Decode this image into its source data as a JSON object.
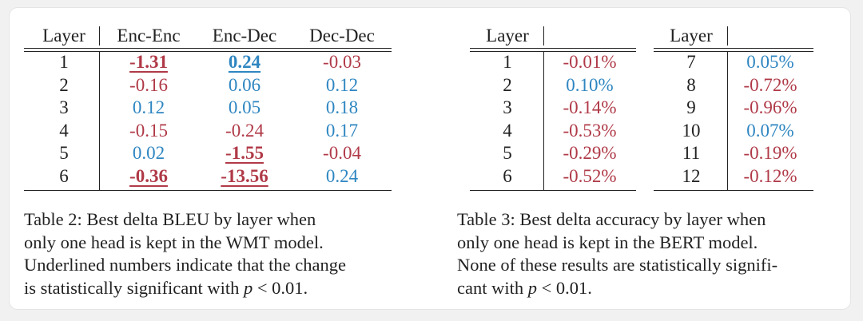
{
  "table2": {
    "headers": [
      "Layer",
      "Enc-Enc",
      "Enc-Dec",
      "Dec-Dec"
    ],
    "rows": [
      {
        "layer": "1",
        "cells": [
          {
            "v": "-1.31",
            "c": "red",
            "sig": true
          },
          {
            "v": "0.24",
            "c": "blue",
            "sig": true
          },
          {
            "v": "-0.03",
            "c": "red",
            "sig": false
          }
        ]
      },
      {
        "layer": "2",
        "cells": [
          {
            "v": "-0.16",
            "c": "red",
            "sig": false
          },
          {
            "v": "0.06",
            "c": "blue",
            "sig": false
          },
          {
            "v": "0.12",
            "c": "blue",
            "sig": false
          }
        ]
      },
      {
        "layer": "3",
        "cells": [
          {
            "v": "0.12",
            "c": "blue",
            "sig": false
          },
          {
            "v": "0.05",
            "c": "blue",
            "sig": false
          },
          {
            "v": "0.18",
            "c": "blue",
            "sig": false
          }
        ]
      },
      {
        "layer": "4",
        "cells": [
          {
            "v": "-0.15",
            "c": "red",
            "sig": false
          },
          {
            "v": "-0.24",
            "c": "red",
            "sig": false
          },
          {
            "v": "0.17",
            "c": "blue",
            "sig": false
          }
        ]
      },
      {
        "layer": "5",
        "cells": [
          {
            "v": "0.02",
            "c": "blue",
            "sig": false
          },
          {
            "v": "-1.55",
            "c": "red",
            "sig": true
          },
          {
            "v": "-0.04",
            "c": "red",
            "sig": false
          }
        ]
      },
      {
        "layer": "6",
        "cells": [
          {
            "v": "-0.36",
            "c": "red",
            "sig": true
          },
          {
            "v": "-13.56",
            "c": "red",
            "sig": true
          },
          {
            "v": "0.24",
            "c": "blue",
            "sig": false
          }
        ]
      }
    ],
    "caption_lines": [
      "Table 2:  Best delta BLEU by layer when",
      "only one head is kept in the WMT model.",
      "Underlined numbers indicate that the change"
    ],
    "caption_last_pre": "is statistically significant with ",
    "caption_p": "p",
    "caption_rel": " < 0.01."
  },
  "table3": {
    "header": "Layer",
    "left_rows": [
      {
        "layer": "1",
        "v": "-0.01%",
        "c": "red"
      },
      {
        "layer": "2",
        "v": "0.10%",
        "c": "blue"
      },
      {
        "layer": "3",
        "v": "-0.14%",
        "c": "red"
      },
      {
        "layer": "4",
        "v": "-0.53%",
        "c": "red"
      },
      {
        "layer": "5",
        "v": "-0.29%",
        "c": "red"
      },
      {
        "layer": "6",
        "v": "-0.52%",
        "c": "red"
      }
    ],
    "right_rows": [
      {
        "layer": "7",
        "v": "0.05%",
        "c": "blue"
      },
      {
        "layer": "8",
        "v": "-0.72%",
        "c": "red"
      },
      {
        "layer": "9",
        "v": "-0.96%",
        "c": "red"
      },
      {
        "layer": "10",
        "v": "0.07%",
        "c": "blue"
      },
      {
        "layer": "11",
        "v": "-0.19%",
        "c": "red"
      },
      {
        "layer": "12",
        "v": "-0.12%",
        "c": "red"
      }
    ],
    "caption_lines": [
      "Table 3:  Best delta accuracy by layer when",
      "only one head is kept in the BERT model.",
      "None of these results are statistically signifi-"
    ],
    "caption_last_pre": "cant with ",
    "caption_p": "p",
    "caption_rel": " < 0.01."
  },
  "colors": {
    "red": "#b03a48",
    "blue": "#2e86c1",
    "text": "#222222"
  }
}
